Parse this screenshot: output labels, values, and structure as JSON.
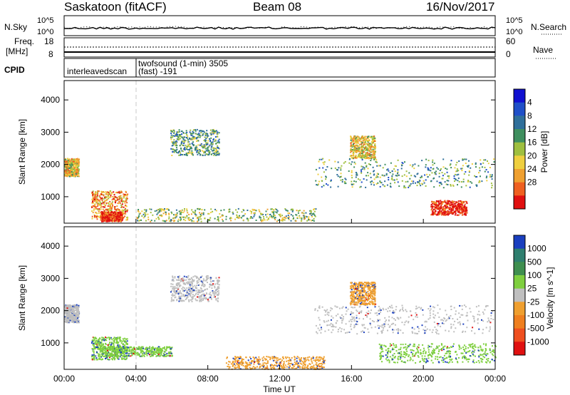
{
  "header": {
    "station": "Saskatoon (fitACF)",
    "beam": "Beam 08",
    "date": "16/Nov/2017"
  },
  "strip_panels": {
    "nsky_label": "N.Sky",
    "nsearch_label": "N.Search",
    "freq_label": "Freq.",
    "freq_unit": "[MHz]",
    "nave_label": "Nave",
    "cpid_label": "CPID",
    "noise_ticks": [
      "10^5",
      "10^0"
    ],
    "noise_ticks_right": [
      "10^5",
      "10^0"
    ],
    "freq_ticks": [
      "18",
      "8"
    ],
    "nave_ticks": [
      "60",
      "0"
    ],
    "cpid_segments": [
      {
        "line1": "interleavedscan",
        "line2": ""
      },
      {
        "line1": "twofsound (1-min) 3505",
        "line2": "(fast) -191"
      }
    ]
  },
  "chart_data": [
    {
      "type": "heatmap",
      "title": "Power",
      "xlabel": "",
      "ylabel": "Slant Range [km]",
      "x_ticks": [
        "00:00",
        "04:00",
        "08:00",
        "12:00",
        "16:00",
        "20:00",
        "00:00"
      ],
      "xlim_hours": [
        0,
        24
      ],
      "y_ticks": [
        1000,
        2000,
        3000,
        4000
      ],
      "ylim_km": [
        180,
        4600
      ],
      "colorbar_label": "Power [dB]",
      "colorbar_ticks": [
        "4",
        "8",
        "12",
        "16",
        "20",
        "24",
        "28"
      ],
      "colorbar_colors": [
        "#1010d0",
        "#1f4fc8",
        "#2f6f9a",
        "#3f8f5f",
        "#9fbf3f",
        "#efcf3f",
        "#efa030",
        "#ef6020",
        "#e01010"
      ],
      "scatter_regions": [
        {
          "hours": [
            0.0,
            0.8
          ],
          "km": [
            1650,
            2200
          ],
          "level": 5
        },
        {
          "hours": [
            1.5,
            3.5
          ],
          "km": [
            300,
            1200
          ],
          "level": 6
        },
        {
          "hours": [
            2.0,
            3.2
          ],
          "km": [
            250,
            550
          ],
          "level": 8
        },
        {
          "hours": [
            5.9,
            8.6
          ],
          "km": [
            2300,
            3100
          ],
          "level": 3
        },
        {
          "hours": [
            4.0,
            14.0
          ],
          "km": [
            250,
            650
          ],
          "level": 4
        },
        {
          "hours": [
            13.9,
            23.9
          ],
          "km": [
            1300,
            2200
          ],
          "level": 3
        },
        {
          "hours": [
            15.9,
            17.3
          ],
          "km": [
            2200,
            2900
          ],
          "level": 5
        },
        {
          "hours": [
            20.4,
            22.4
          ],
          "km": [
            450,
            900
          ],
          "level": 8
        }
      ]
    },
    {
      "type": "heatmap",
      "title": "Velocity",
      "xlabel": "Time UT",
      "ylabel": "Slant Range [km]",
      "x_ticks": [
        "00:00",
        "04:00",
        "08:00",
        "12:00",
        "16:00",
        "20:00",
        "00:00"
      ],
      "xlim_hours": [
        0,
        24
      ],
      "y_ticks": [
        1000,
        2000,
        3000,
        4000
      ],
      "ylim_km": [
        180,
        4600
      ],
      "colorbar_label": "Velocity [m s^-1]",
      "colorbar_ticks": [
        "1000",
        "500",
        "100",
        "25",
        "-25",
        "-100",
        "-500",
        "-1000"
      ],
      "colorbar_colors": [
        "#1a3fbf",
        "#2f7f6f",
        "#3f8f4f",
        "#7fcf3f",
        "#bfbfbf",
        "#ef9f2f",
        "#ef7f1f",
        "#ef4f1f",
        "#e01010"
      ],
      "scatter_regions": [
        {
          "hours": [
            0.0,
            0.8
          ],
          "km": [
            1650,
            2200
          ],
          "level": "gray"
        },
        {
          "hours": [
            1.5,
            3.5
          ],
          "km": [
            500,
            1200
          ],
          "level": "green"
        },
        {
          "hours": [
            2.0,
            6.0
          ],
          "km": [
            600,
            900
          ],
          "level": "green"
        },
        {
          "hours": [
            5.9,
            8.6
          ],
          "km": [
            2300,
            3100
          ],
          "level": "gray"
        },
        {
          "hours": [
            9.0,
            14.5
          ],
          "km": [
            200,
            600
          ],
          "level": "orange"
        },
        {
          "hours": [
            13.9,
            23.9
          ],
          "km": [
            1300,
            2200
          ],
          "level": "gray"
        },
        {
          "hours": [
            15.9,
            17.3
          ],
          "km": [
            2200,
            2900
          ],
          "level": "orange"
        },
        {
          "hours": [
            17.5,
            24.0
          ],
          "km": [
            400,
            1000
          ],
          "level": "green"
        }
      ]
    }
  ]
}
